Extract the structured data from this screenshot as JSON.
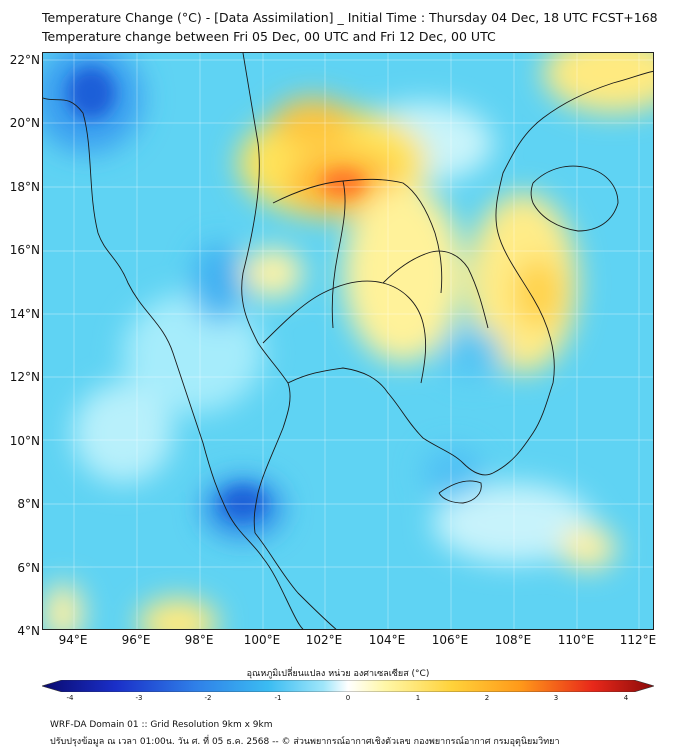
{
  "title": {
    "line1": "Temperature Change (°C) - [Data Assimilation] _ Initial Time : Thursday 04 Dec, 18 UTC FCST+168",
    "line2": "Temperature change between Fri 05 Dec, 00 UTC and Fri 12 Dec, 00 UTC"
  },
  "map": {
    "y_ticks": [
      "22°N",
      "20°N",
      "18°N",
      "16°N",
      "14°N",
      "12°N",
      "10°N",
      "8°N",
      "6°N",
      "4°N"
    ],
    "x_ticks": [
      "94°E",
      "96°E",
      "98°E",
      "100°E",
      "102°E",
      "104°E",
      "106°E",
      "108°E",
      "110°E",
      "112°E"
    ],
    "lon_range": [
      93,
      112.5
    ],
    "lat_range": [
      4,
      22.2
    ],
    "background_color": "#5fd3f3"
  },
  "colorbar": {
    "label": "อุณหภูมิเปลี่ยนแปลง หน่วย องศาเซลเซียส (°C)",
    "ticks": [
      "-4",
      "-3",
      "-2",
      "-1",
      "0",
      "1",
      "2",
      "3",
      "4"
    ],
    "range": [
      -4,
      4
    ],
    "colors": [
      "#0a0a6e",
      "#1a2fc8",
      "#2f7fe8",
      "#3bbcf2",
      "#9fe6fa",
      "#ffffff",
      "#fff7a8",
      "#ffd23a",
      "#ff9a1a",
      "#e8281a",
      "#8a0a0a"
    ]
  },
  "footer": {
    "line1": "WRF-DA Domain 01 :: Grid Resolution 9km x 9km",
    "line2": "ปรับปรุงข้อมูล ณ เวลา 01:00น. วัน ศ. ที่ 05 ธ.ค. 2568 -- © ส่วนพยากรณ์อากาศเชิงตัวเลข กองพยากรณ์อากาศ กรมอุตุนิยมวิทยา"
  }
}
